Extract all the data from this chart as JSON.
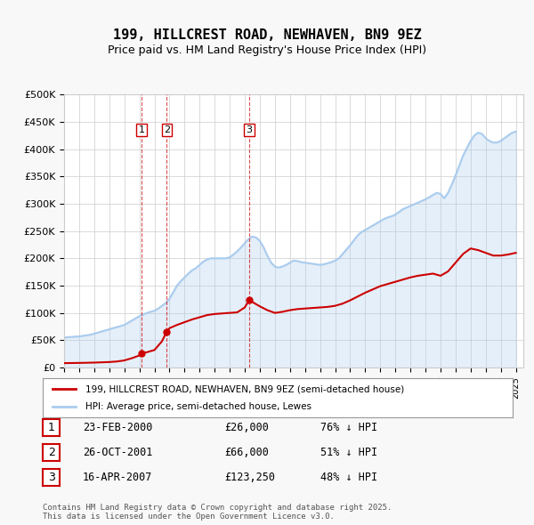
{
  "title": "199, HILLCREST ROAD, NEWHAVEN, BN9 9EZ",
  "subtitle": "Price paid vs. HM Land Registry's House Price Index (HPI)",
  "legend_entry1": "199, HILLCREST ROAD, NEWHAVEN, BN9 9EZ (semi-detached house)",
  "legend_entry2": "HPI: Average price, semi-detached house, Lewes",
  "footnote": "Contains HM Land Registry data © Crown copyright and database right 2025.\nThis data is licensed under the Open Government Licence v3.0.",
  "sale_color": "#cc0000",
  "hpi_color": "#aaccee",
  "bg_color": "#f8f8f8",
  "plot_bg": "#ffffff",
  "grid_color": "#cccccc",
  "transactions": [
    {
      "num": 1,
      "date": "23-FEB-2000",
      "price": 26000,
      "hpi_pct": "76% ↓ HPI",
      "x": 2000.14
    },
    {
      "num": 2,
      "date": "26-OCT-2001",
      "price": 66000,
      "hpi_pct": "51% ↓ HPI",
      "x": 2001.82
    },
    {
      "num": 3,
      "date": "16-APR-2007",
      "price": 123250,
      "hpi_pct": "48% ↓ HPI",
      "x": 2007.29
    }
  ],
  "hpi_data": {
    "x": [
      1995,
      1995.25,
      1995.5,
      1995.75,
      1996,
      1996.25,
      1996.5,
      1996.75,
      1997,
      1997.25,
      1997.5,
      1997.75,
      1998,
      1998.25,
      1998.5,
      1998.75,
      1999,
      1999.25,
      1999.5,
      1999.75,
      2000,
      2000.25,
      2000.5,
      2000.75,
      2001,
      2001.25,
      2001.5,
      2001.75,
      2002,
      2002.25,
      2002.5,
      2002.75,
      2003,
      2003.25,
      2003.5,
      2003.75,
      2004,
      2004.25,
      2004.5,
      2004.75,
      2005,
      2005.25,
      2005.5,
      2005.75,
      2006,
      2006.25,
      2006.5,
      2006.75,
      2007,
      2007.25,
      2007.5,
      2007.75,
      2008,
      2008.25,
      2008.5,
      2008.75,
      2009,
      2009.25,
      2009.5,
      2009.75,
      2010,
      2010.25,
      2010.5,
      2010.75,
      2011,
      2011.25,
      2011.5,
      2011.75,
      2012,
      2012.25,
      2012.5,
      2012.75,
      2013,
      2013.25,
      2013.5,
      2013.75,
      2014,
      2014.25,
      2014.5,
      2014.75,
      2015,
      2015.25,
      2015.5,
      2015.75,
      2016,
      2016.25,
      2016.5,
      2016.75,
      2017,
      2017.25,
      2017.5,
      2017.75,
      2018,
      2018.25,
      2018.5,
      2018.75,
      2019,
      2019.25,
      2019.5,
      2019.75,
      2020,
      2020.25,
      2020.5,
      2020.75,
      2021,
      2021.25,
      2021.5,
      2021.75,
      2022,
      2022.25,
      2022.5,
      2022.75,
      2023,
      2023.25,
      2023.5,
      2023.75,
      2024,
      2024.25,
      2024.5,
      2024.75,
      2025
    ],
    "y": [
      55000,
      55500,
      56000,
      56500,
      57000,
      58000,
      59000,
      60000,
      62000,
      64000,
      66000,
      68000,
      70000,
      72000,
      74000,
      76000,
      78000,
      82000,
      86000,
      90000,
      94000,
      97000,
      100000,
      102000,
      104000,
      108000,
      113000,
      118000,
      126000,
      138000,
      150000,
      158000,
      165000,
      172000,
      178000,
      182000,
      188000,
      194000,
      198000,
      200000,
      200000,
      200000,
      200000,
      200000,
      202000,
      207000,
      213000,
      220000,
      228000,
      235000,
      240000,
      238000,
      232000,
      220000,
      205000,
      192000,
      185000,
      183000,
      185000,
      188000,
      192000,
      196000,
      195000,
      193000,
      192000,
      191000,
      190000,
      189000,
      188000,
      189000,
      191000,
      193000,
      196000,
      200000,
      208000,
      216000,
      224000,
      233000,
      242000,
      248000,
      252000,
      256000,
      260000,
      264000,
      268000,
      272000,
      275000,
      277000,
      280000,
      285000,
      290000,
      293000,
      296000,
      299000,
      302000,
      305000,
      308000,
      312000,
      316000,
      320000,
      318000,
      310000,
      320000,
      335000,
      352000,
      370000,
      388000,
      402000,
      415000,
      425000,
      430000,
      428000,
      420000,
      415000,
      412000,
      412000,
      415000,
      420000,
      425000,
      430000,
      432000
    ]
  },
  "sale_data": {
    "x": [
      1995,
      1995.5,
      1996,
      1996.5,
      1997,
      1997.5,
      1998,
      1998.5,
      1999,
      1999.5,
      2000,
      2000.14,
      2000.5,
      2001,
      2001.5,
      2001.82,
      2002,
      2002.5,
      2003,
      2003.5,
      2004,
      2004.5,
      2005,
      2005.5,
      2006,
      2006.5,
      2007,
      2007.29,
      2007.5,
      2008,
      2008.5,
      2009,
      2009.5,
      2010,
      2010.5,
      2011,
      2011.5,
      2012,
      2012.5,
      2013,
      2013.5,
      2014,
      2014.5,
      2015,
      2015.5,
      2016,
      2016.5,
      2017,
      2017.5,
      2018,
      2018.5,
      2019,
      2019.5,
      2020,
      2020.5,
      2021,
      2021.5,
      2022,
      2022.5,
      2023,
      2023.5,
      2024,
      2024.5,
      2025
    ],
    "y": [
      8000,
      8200,
      8400,
      8700,
      9000,
      9500,
      10000,
      11000,
      13000,
      17000,
      22000,
      26000,
      28000,
      32000,
      48000,
      66000,
      72000,
      78000,
      83000,
      88000,
      92000,
      96000,
      98000,
      99000,
      100000,
      101000,
      110000,
      123250,
      120000,
      112000,
      105000,
      100000,
      102000,
      105000,
      107000,
      108000,
      109000,
      110000,
      111000,
      113000,
      117000,
      123000,
      130000,
      137000,
      143000,
      149000,
      153000,
      157000,
      161000,
      165000,
      168000,
      170000,
      172000,
      168000,
      176000,
      192000,
      208000,
      218000,
      215000,
      210000,
      205000,
      205000,
      207000,
      210000
    ]
  },
  "xlim": [
    1995,
    2025.5
  ],
  "ylim": [
    0,
    500000
  ],
  "yticks": [
    0,
    50000,
    100000,
    150000,
    200000,
    250000,
    300000,
    350000,
    400000,
    450000,
    500000
  ],
  "xticks": [
    1995,
    1996,
    1997,
    1998,
    1999,
    2000,
    2001,
    2002,
    2003,
    2004,
    2005,
    2006,
    2007,
    2008,
    2009,
    2010,
    2011,
    2012,
    2013,
    2014,
    2015,
    2016,
    2017,
    2018,
    2019,
    2020,
    2021,
    2022,
    2023,
    2024,
    2025
  ]
}
